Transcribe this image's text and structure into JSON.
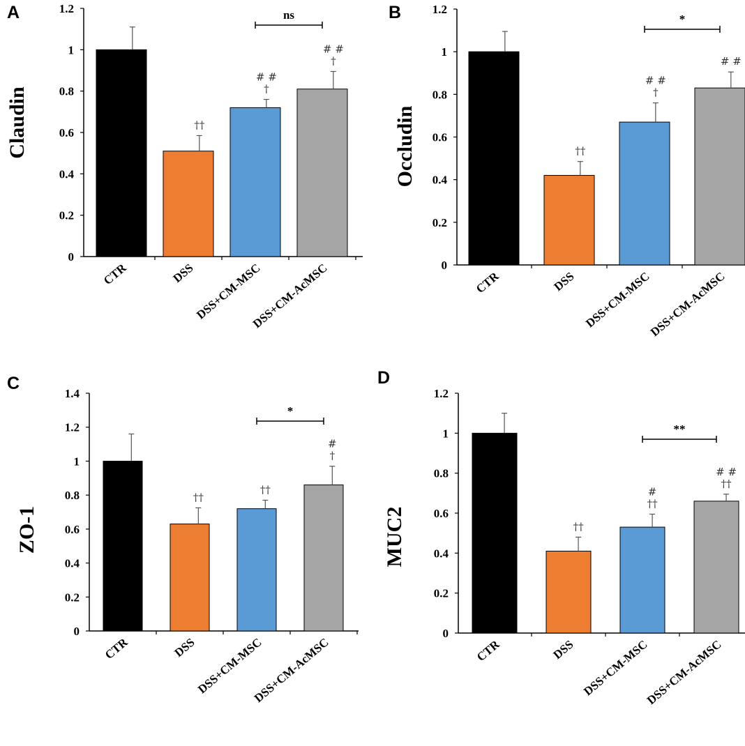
{
  "chart_data": [
    {
      "panel": "A",
      "type": "bar",
      "ylabel": "Claudin",
      "categories": [
        "CTR",
        "DSS",
        "DSS+CM-MSC",
        "DSS+CM-AcMSC"
      ],
      "values": [
        1.0,
        0.51,
        0.72,
        0.81
      ],
      "errors": [
        0.11,
        0.075,
        0.04,
        0.085
      ],
      "colors": [
        "#000000",
        "#ed7d31",
        "#5b9bd5",
        "#a5a5a5"
      ],
      "ylim": [
        0,
        1.2
      ],
      "yticks": [
        "0",
        "0.2",
        "0.4",
        "0.6",
        "0.8",
        "1",
        "1.2"
      ],
      "annotations": [
        [],
        [
          "††"
        ],
        [
          "# #",
          "†"
        ],
        [
          "# #",
          "†"
        ]
      ],
      "comparison": {
        "from": 2,
        "to": 3,
        "label": "ns"
      }
    },
    {
      "panel": "B",
      "type": "bar",
      "ylabel": "Occludin",
      "categories": [
        "CTR",
        "DSS",
        "DSS+CM-MSC",
        "DSS+CM-AcMSC"
      ],
      "values": [
        1.0,
        0.42,
        0.67,
        0.83
      ],
      "errors": [
        0.095,
        0.065,
        0.09,
        0.075
      ],
      "colors": [
        "#000000",
        "#ed7d31",
        "#5b9bd5",
        "#a5a5a5"
      ],
      "ylim": [
        0,
        1.2
      ],
      "yticks": [
        "0",
        "0.2",
        "0.4",
        "0.6",
        "0.8",
        "1",
        "1.2"
      ],
      "annotations": [
        [],
        [
          "††"
        ],
        [
          "# #",
          "†"
        ],
        [
          "# #"
        ]
      ],
      "comparison": {
        "from": 2,
        "to": 3,
        "label": "*"
      }
    },
    {
      "panel": "C",
      "type": "bar",
      "ylabel": "ZO-1",
      "categories": [
        "CTR",
        "DSS",
        "DSS+CM-MSC",
        "DSS+CM-AcMSC"
      ],
      "values": [
        1.0,
        0.63,
        0.72,
        0.86
      ],
      "errors": [
        0.16,
        0.095,
        0.05,
        0.11
      ],
      "colors": [
        "#000000",
        "#ed7d31",
        "#5b9bd5",
        "#a5a5a5"
      ],
      "ylim": [
        0,
        1.4
      ],
      "yticks": [
        "0",
        "0.2",
        "0.4",
        "0.6",
        "0.8",
        "1",
        "1.2",
        "1.4"
      ],
      "annotations": [
        [],
        [
          "††"
        ],
        [
          "††"
        ],
        [
          "#",
          "†"
        ]
      ],
      "comparison": {
        "from": 2,
        "to": 3,
        "label": "*"
      }
    },
    {
      "panel": "D",
      "type": "bar",
      "ylabel": "MUC2",
      "categories": [
        "CTR",
        "DSS",
        "DSS+CM-MSC",
        "DSS+CM-AcMSC"
      ],
      "values": [
        1.0,
        0.41,
        0.53,
        0.66
      ],
      "errors": [
        0.1,
        0.07,
        0.065,
        0.035
      ],
      "colors": [
        "#000000",
        "#ed7d31",
        "#5b9bd5",
        "#a5a5a5"
      ],
      "ylim": [
        0,
        1.2
      ],
      "yticks": [
        "0",
        "0.2",
        "0.4",
        "0.6",
        "0.8",
        "1",
        "1.2"
      ],
      "annotations": [
        [],
        [
          "††"
        ],
        [
          "#",
          "††"
        ],
        [
          "# #",
          "††"
        ]
      ],
      "comparison": {
        "from": 2,
        "to": 3,
        "label": "**"
      }
    }
  ]
}
